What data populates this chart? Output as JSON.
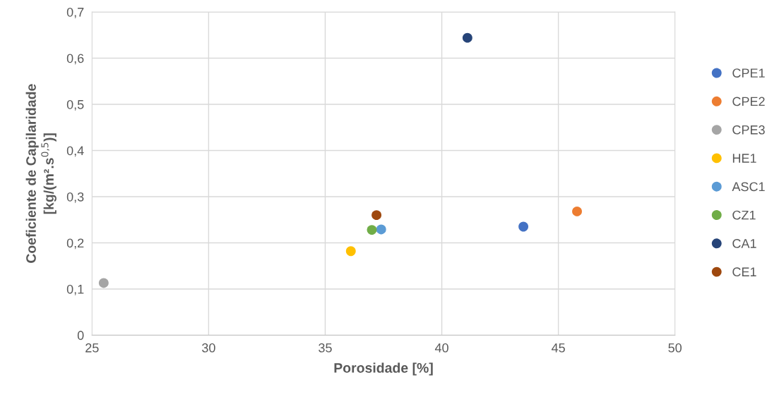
{
  "chart_data": {
    "type": "scatter",
    "xlabel": "Porosidade [%]",
    "ylabel": "Coeficiente de Capilaridade\n[kg/(m².s$^{0,5}$)]",
    "xlim": [
      25,
      50
    ],
    "xticks": [
      25,
      30,
      35,
      40,
      45,
      50
    ],
    "ylim": [
      0,
      0.7
    ],
    "yticks": [
      0,
      {
        "value": 0.1,
        "label": "0,1"
      },
      {
        "value": 0.2,
        "label": "0,2"
      },
      {
        "value": 0.3,
        "label": "0,3"
      },
      {
        "value": 0.4,
        "label": "0,4"
      },
      {
        "value": 0.5,
        "label": "0,5"
      },
      {
        "value": 0.6,
        "label": "0,6"
      },
      {
        "value": 0.7,
        "label": "0,7"
      }
    ],
    "grid": true,
    "legend": "right",
    "marker": "circle",
    "series": [
      {
        "name": "CPE1",
        "color": "#4472c4",
        "x": [
          43.5
        ],
        "values": [
          0.235
        ]
      },
      {
        "name": "CPE2",
        "color": "#ed7d31",
        "x": [
          45.8
        ],
        "values": [
          0.268
        ]
      },
      {
        "name": "CPE3",
        "color": "#a5a5a5",
        "x": [
          25.5
        ],
        "values": [
          0.113
        ]
      },
      {
        "name": "HE1",
        "color": "#ffc000",
        "x": [
          36.1
        ],
        "values": [
          0.182
        ]
      },
      {
        "name": "ASC1",
        "color": "#5b9bd5",
        "x": [
          37.4
        ],
        "values": [
          0.229
        ]
      },
      {
        "name": "CZ1",
        "color": "#70ad47",
        "x": [
          37.0
        ],
        "values": [
          0.228
        ]
      },
      {
        "name": "CA1",
        "color": "#264478",
        "x": [
          41.1
        ],
        "values": [
          0.644
        ]
      },
      {
        "name": "CE1",
        "color": "#9e480e",
        "x": [
          37.2
        ],
        "values": [
          0.26
        ]
      }
    ]
  }
}
